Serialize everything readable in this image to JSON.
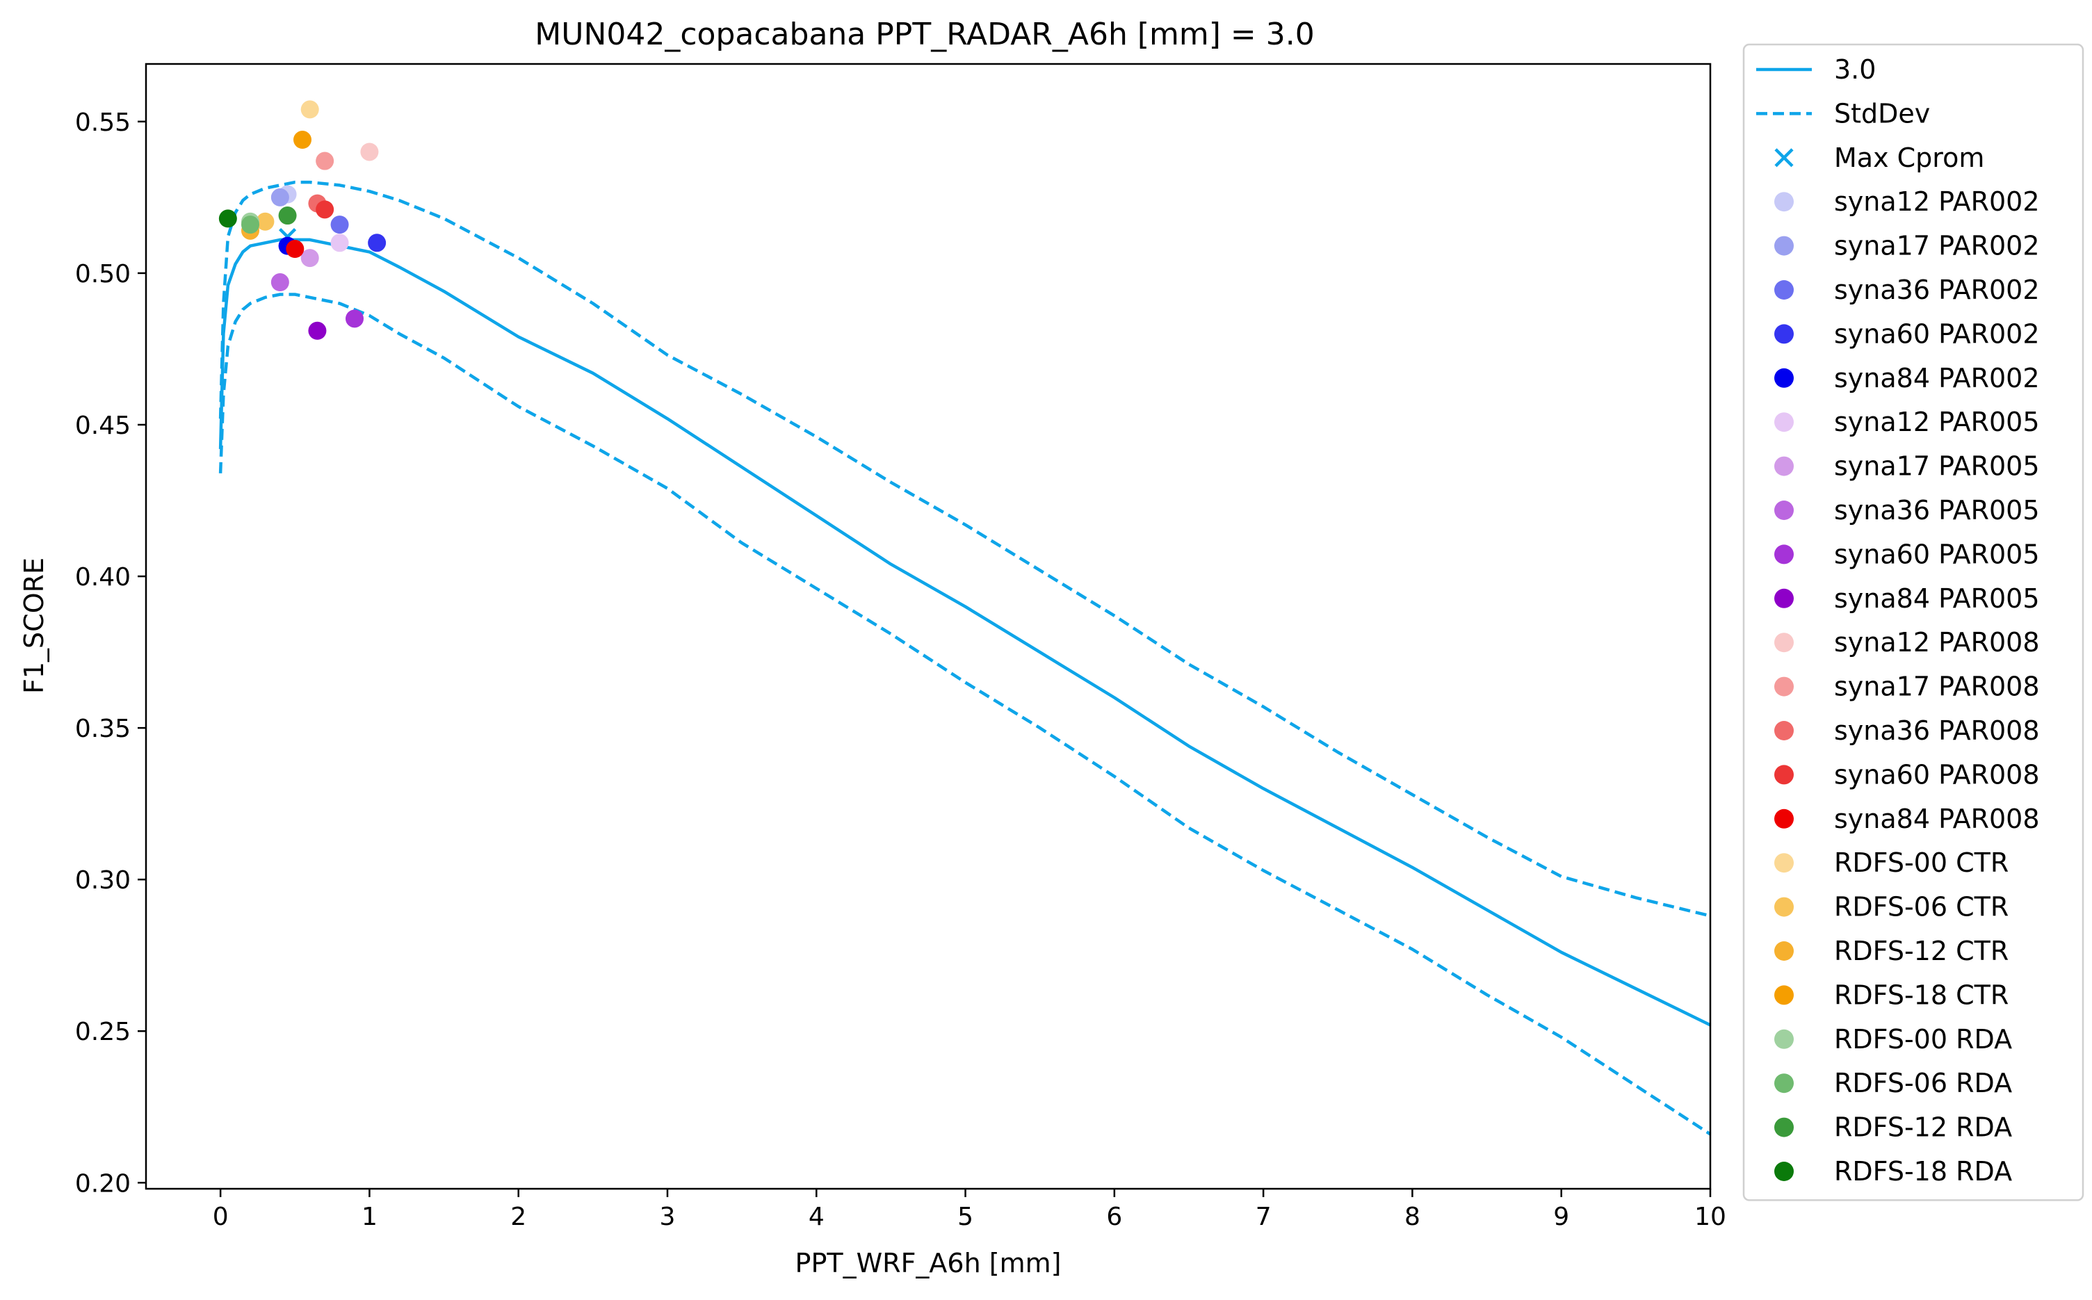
{
  "chart_data": {
    "type": "line",
    "title": "MUN042_copacabana    PPT_RADAR_A6h [mm] = 3.0",
    "xlabel": "PPT_WRF_A6h [mm]",
    "ylabel": "F1_SCORE",
    "xlim": [
      -0.5,
      10
    ],
    "ylim": [
      0.198,
      0.569
    ],
    "xticks": [
      0,
      1,
      2,
      3,
      4,
      5,
      6,
      7,
      8,
      9,
      10
    ],
    "yticks": [
      0.2,
      0.25,
      0.3,
      0.35,
      0.4,
      0.45,
      0.5,
      0.55
    ],
    "xtick_labels": [
      "0",
      "1",
      "2",
      "3",
      "4",
      "5",
      "6",
      "7",
      "8",
      "9",
      "10"
    ],
    "ytick_labels": [
      "0.20",
      "0.25",
      "0.30",
      "0.35",
      "0.40",
      "0.45",
      "0.50",
      "0.55"
    ],
    "grid": false,
    "legend_position": "outside-right",
    "line_color": "#0ea5e9",
    "series": [
      {
        "name": "3.0",
        "style": "solid",
        "x": [
          0,
          0.02,
          0.05,
          0.1,
          0.15,
          0.2,
          0.3,
          0.4,
          0.5,
          0.6,
          0.8,
          1.0,
          1.2,
          1.5,
          2.0,
          2.5,
          3.0,
          3.5,
          4.0,
          4.5,
          5.0,
          5.5,
          6.0,
          6.5,
          7.0,
          7.5,
          8.0,
          8.5,
          9.0,
          9.5,
          10.0
        ],
        "y": [
          0.442,
          0.48,
          0.496,
          0.503,
          0.507,
          0.509,
          0.51,
          0.511,
          0.511,
          0.511,
          0.509,
          0.507,
          0.502,
          0.494,
          0.479,
          0.467,
          0.452,
          0.436,
          0.42,
          0.404,
          0.39,
          0.375,
          0.36,
          0.344,
          0.33,
          0.317,
          0.304,
          0.29,
          0.276,
          0.264,
          0.252
        ]
      },
      {
        "name": "StdDev",
        "style": "dashed",
        "x": [
          0,
          0.02,
          0.05,
          0.1,
          0.15,
          0.2,
          0.3,
          0.4,
          0.5,
          0.6,
          0.8,
          1.0,
          1.2,
          1.5,
          2.0,
          2.5,
          3.0,
          3.5,
          4.0,
          4.5,
          5.0,
          5.5,
          6.0,
          6.5,
          7.0,
          7.5,
          8.0,
          8.5,
          9.0,
          9.5,
          10.0
        ],
        "y": [
          0.452,
          0.49,
          0.512,
          0.52,
          0.524,
          0.526,
          0.528,
          0.529,
          0.53,
          0.53,
          0.529,
          0.527,
          0.524,
          0.518,
          0.505,
          0.49,
          0.473,
          0.46,
          0.446,
          0.431,
          0.417,
          0.402,
          0.387,
          0.371,
          0.357,
          0.342,
          0.328,
          0.314,
          0.301,
          0.294,
          0.288
        ]
      },
      {
        "name": "",
        "style": "dashed",
        "x": [
          0,
          0.02,
          0.05,
          0.1,
          0.15,
          0.2,
          0.3,
          0.4,
          0.5,
          0.6,
          0.8,
          1.0,
          1.2,
          1.5,
          2.0,
          2.5,
          3.0,
          3.5,
          4.0,
          4.5,
          5.0,
          5.5,
          6.0,
          6.5,
          7.0,
          7.5,
          8.0,
          8.5,
          9.0,
          9.5,
          10.0
        ],
        "y": [
          0.434,
          0.46,
          0.476,
          0.484,
          0.488,
          0.49,
          0.492,
          0.493,
          0.493,
          0.492,
          0.49,
          0.486,
          0.48,
          0.472,
          0.456,
          0.443,
          0.429,
          0.411,
          0.396,
          0.381,
          0.365,
          0.35,
          0.334,
          0.317,
          0.303,
          0.29,
          0.277,
          0.262,
          0.248,
          0.232,
          0.216
        ]
      }
    ],
    "max_marker": {
      "name": "Max Cprom",
      "x": 0.45,
      "y": 0.512,
      "color": "#0ea5e9"
    },
    "points": [
      {
        "name": "syna12 PAR002",
        "x": 0.45,
        "y": 0.526,
        "color": "#c7c9f7"
      },
      {
        "name": "syna17 PAR002",
        "x": 0.4,
        "y": 0.525,
        "color": "#9aa0f0"
      },
      {
        "name": "syna36 PAR002",
        "x": 0.8,
        "y": 0.516,
        "color": "#6b6ff0"
      },
      {
        "name": "syna60 PAR002",
        "x": 1.05,
        "y": 0.51,
        "color": "#3434f0"
      },
      {
        "name": "syna84 PAR002",
        "x": 0.45,
        "y": 0.509,
        "color": "#0000ee"
      },
      {
        "name": "syna12 PAR005",
        "x": 0.8,
        "y": 0.51,
        "color": "#e6c6f5"
      },
      {
        "name": "syna17 PAR005",
        "x": 0.6,
        "y": 0.505,
        "color": "#d29ae8"
      },
      {
        "name": "syna36 PAR005",
        "x": 0.4,
        "y": 0.497,
        "color": "#bb66e0"
      },
      {
        "name": "syna60 PAR005",
        "x": 0.9,
        "y": 0.485,
        "color": "#a533d8"
      },
      {
        "name": "syna84 PAR005",
        "x": 0.65,
        "y": 0.481,
        "color": "#8e00c8"
      },
      {
        "name": "syna12 PAR008",
        "x": 1.0,
        "y": 0.54,
        "color": "#f9c8c8"
      },
      {
        "name": "syna17 PAR008",
        "x": 0.7,
        "y": 0.537,
        "color": "#f59a9a"
      },
      {
        "name": "syna36 PAR008",
        "x": 0.65,
        "y": 0.523,
        "color": "#f06a6a"
      },
      {
        "name": "syna60 PAR008",
        "x": 0.7,
        "y": 0.521,
        "color": "#ec3535"
      },
      {
        "name": "syna84 PAR008",
        "x": 0.5,
        "y": 0.508,
        "color": "#ee0000"
      },
      {
        "name": "RDFS-00 CTR",
        "x": 0.6,
        "y": 0.554,
        "color": "#fbd894"
      },
      {
        "name": "RDFS-06 CTR",
        "x": 0.3,
        "y": 0.517,
        "color": "#f8c45a"
      },
      {
        "name": "RDFS-12 CTR",
        "x": 0.2,
        "y": 0.514,
        "color": "#f6b02e"
      },
      {
        "name": "RDFS-18 CTR",
        "x": 0.55,
        "y": 0.544,
        "color": "#f59e00"
      },
      {
        "name": "RDFS-00 RDA",
        "x": 0.2,
        "y": 0.517,
        "color": "#9fd19f"
      },
      {
        "name": "RDFS-06 RDA",
        "x": 0.2,
        "y": 0.516,
        "color": "#6fba6f"
      },
      {
        "name": "RDFS-12 RDA",
        "x": 0.45,
        "y": 0.519,
        "color": "#3a9a3a"
      },
      {
        "name": "RDFS-18 RDA",
        "x": 0.05,
        "y": 0.518,
        "color": "#0a7a0a"
      }
    ]
  }
}
